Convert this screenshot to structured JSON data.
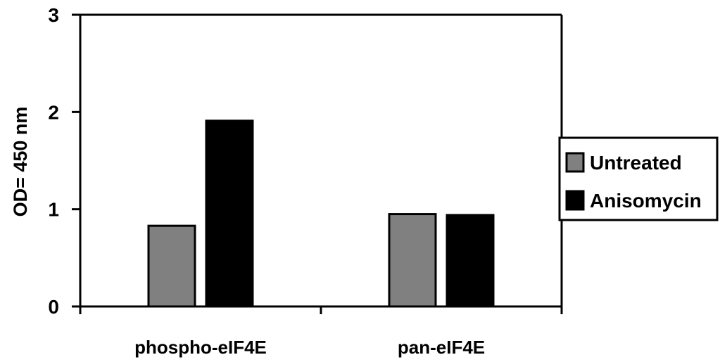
{
  "chart_data": {
    "type": "bar",
    "title": "",
    "xlabel": "",
    "ylabel": "OD= 450 nm",
    "ylim": [
      0,
      3
    ],
    "yticks": [
      0,
      1,
      2,
      3
    ],
    "categories": [
      "phospho-eIF4E",
      "pan-eIF4E"
    ],
    "series": [
      {
        "name": "Untreated",
        "values": [
          0.83,
          0.95
        ],
        "color": "#808080"
      },
      {
        "name": "Anisomycin",
        "values": [
          1.91,
          0.94
        ],
        "color": "#000000"
      }
    ],
    "grid": false,
    "legend_position": "right"
  }
}
